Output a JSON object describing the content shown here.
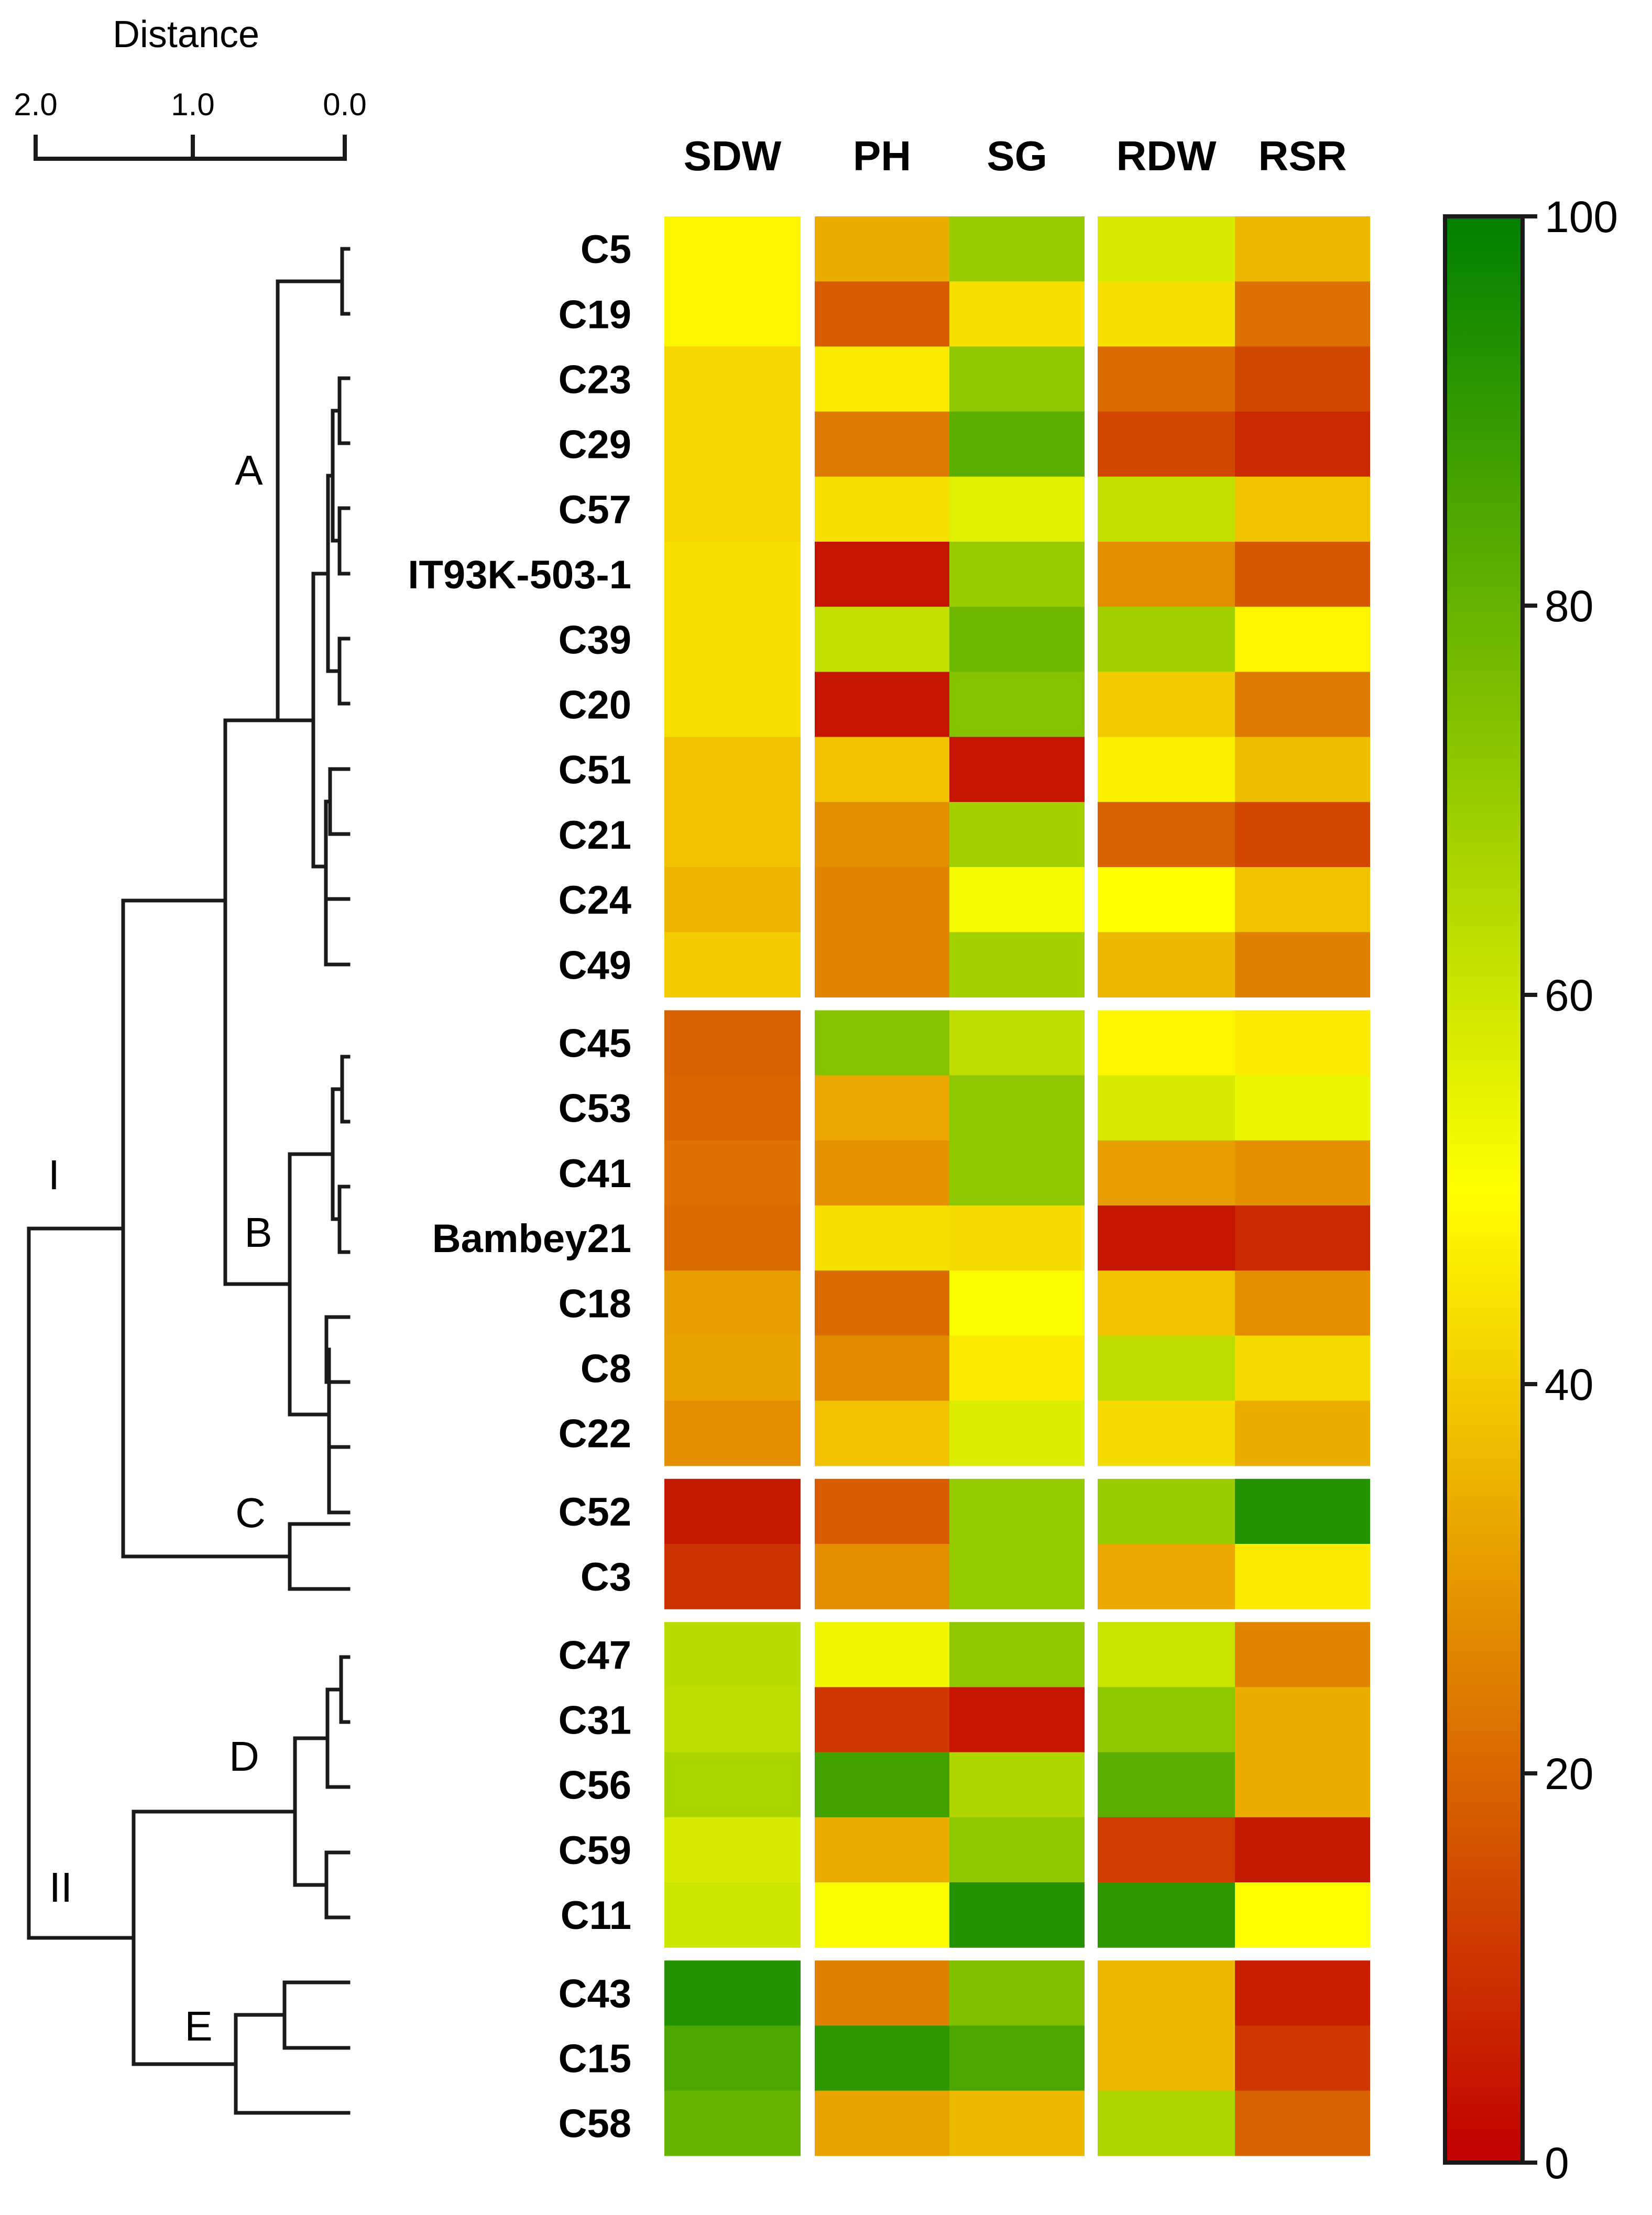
{
  "chart_data": {
    "type": "heatmap",
    "title": "",
    "columns": [
      "SDW",
      "PH",
      "SG",
      "RDW",
      "RSR"
    ],
    "rows": [
      "C5",
      "C19",
      "C23",
      "C29",
      "C57",
      "IT93K-503-1",
      "C39",
      "C20",
      "C51",
      "C21",
      "C24",
      "C49",
      "C45",
      "C53",
      "C41",
      "Bambey21",
      "C18",
      "C8",
      "C22",
      "C52",
      "C3",
      "C47",
      "C31",
      "C56",
      "C59",
      "C11",
      "C43",
      "C15",
      "C58"
    ],
    "values": [
      [
        48,
        34,
        70,
        58,
        36
      ],
      [
        48,
        18,
        44,
        44,
        22
      ],
      [
        42,
        46,
        72,
        21,
        14
      ],
      [
        42,
        24,
        82,
        14,
        8
      ],
      [
        42,
        44,
        56,
        62,
        38
      ],
      [
        44,
        4,
        70,
        28,
        17
      ],
      [
        44,
        62,
        78,
        68,
        48
      ],
      [
        44,
        4,
        74,
        40,
        24
      ],
      [
        38,
        38,
        4,
        47,
        37
      ],
      [
        38,
        28,
        68,
        19,
        14
      ],
      [
        35,
        26,
        52,
        50,
        38
      ],
      [
        40,
        26,
        68,
        36,
        25
      ],
      [
        19,
        74,
        63,
        48,
        46
      ],
      [
        20,
        33,
        72,
        58,
        54
      ],
      [
        22,
        29,
        72,
        31,
        28
      ],
      [
        21,
        44,
        43,
        4,
        8
      ],
      [
        31,
        21,
        51,
        38,
        28
      ],
      [
        32,
        27,
        46,
        63,
        43
      ],
      [
        28,
        38,
        57,
        43,
        34
      ],
      [
        5,
        18,
        71,
        70,
        93
      ],
      [
        10,
        28,
        71,
        33,
        46
      ],
      [
        64,
        53,
        72,
        61,
        26
      ],
      [
        63,
        11,
        4,
        72,
        34
      ],
      [
        67,
        87,
        66,
        82,
        34
      ],
      [
        58,
        34,
        72,
        12,
        5
      ],
      [
        60,
        51,
        93,
        91,
        50
      ],
      [
        93,
        25,
        75,
        36,
        6
      ],
      [
        85,
        91,
        85,
        36,
        11
      ],
      [
        80,
        32,
        36,
        66,
        19
      ]
    ],
    "row_groups": [
      12,
      7,
      2,
      5,
      3
    ],
    "colorbar": {
      "min": 0,
      "max": 100,
      "ticks": [
        0,
        20,
        40,
        60,
        80,
        100
      ],
      "colors": [
        "#c00000",
        "#ffff00",
        "#008000"
      ]
    },
    "dendrogram": {
      "title": "Distance",
      "axis_ticks": [
        "2.0",
        "1.0",
        "0.0"
      ],
      "axis_range": [
        2.0,
        0.0
      ],
      "cluster_labels": [
        "A",
        "B",
        "C",
        "D",
        "E",
        "I",
        "II"
      ]
    }
  }
}
